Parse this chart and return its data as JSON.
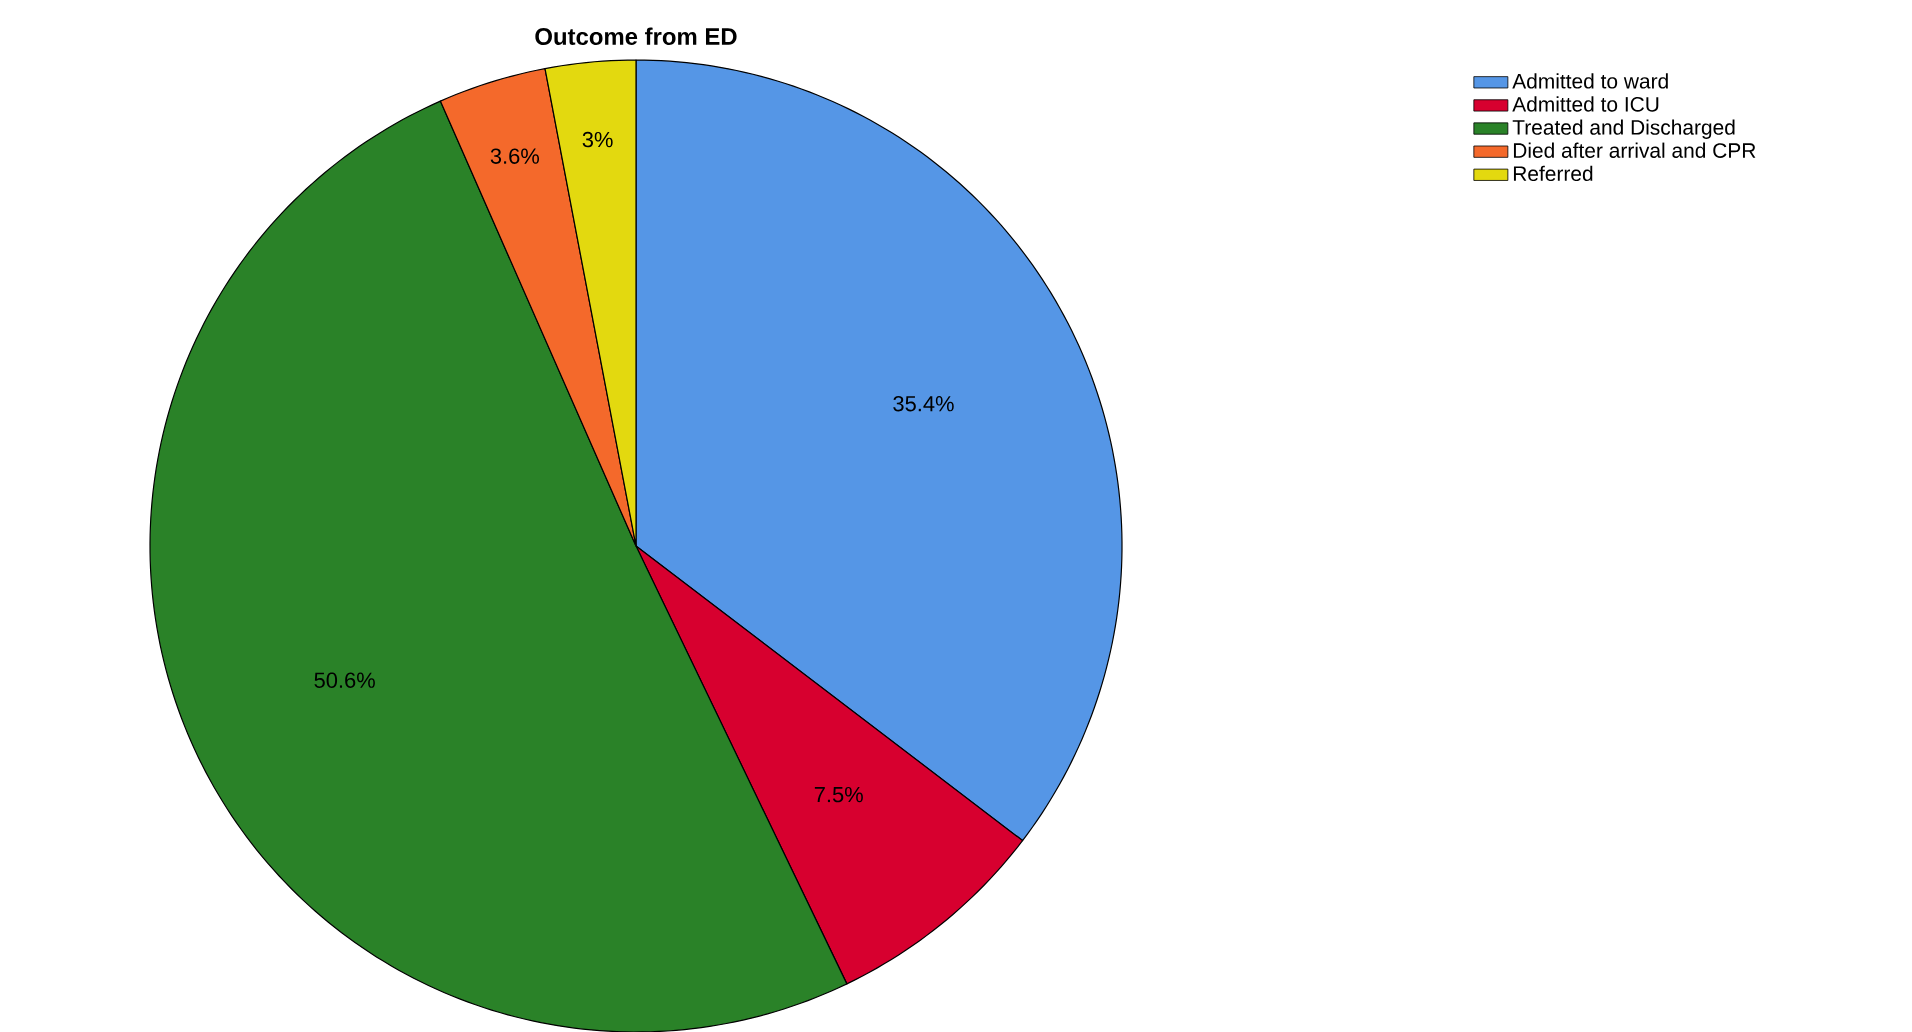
{
  "chart_data": {
    "type": "pie",
    "title": "Outcome from ED",
    "categories": [
      "Admitted to ward",
      "Admitted to ICU",
      "Treated and Discharged",
      "Died after arrival and CPR",
      "Referred"
    ],
    "values": [
      35.4,
      7.5,
      50.6,
      3.6,
      3
    ],
    "colors": [
      "#5596e6",
      "#d7002f",
      "#2a8228",
      "#f4692b",
      "#e3d90f"
    ],
    "value_labels": [
      "35.4%",
      "7.5%",
      "50.6%",
      "3.6%",
      "3%"
    ],
    "legend": "top right"
  }
}
